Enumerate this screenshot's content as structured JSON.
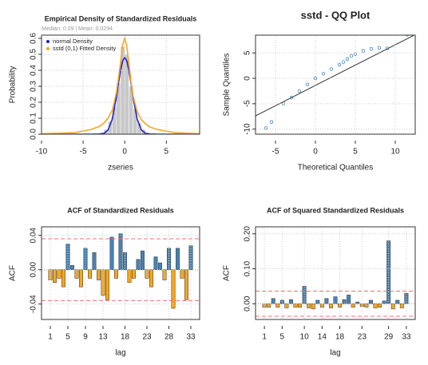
{
  "chart_data": [
    {
      "type": "histogram",
      "title": "Empirical Density of Standardized Residuals",
      "subtitle": "Median: 0.09 | Mean: 0.0294",
      "xlabel": "zseries",
      "ylabel": "Probability",
      "bins": [
        -3,
        -2.5,
        -2,
        -1.5,
        -1,
        -0.5,
        0,
        0.5,
        1,
        1.5,
        2,
        2.5,
        3
      ],
      "counts": [
        0.01,
        0.03,
        0.08,
        0.17,
        0.32,
        0.55,
        0.5,
        0.3,
        0.16,
        0.07,
        0.03,
        0.01
      ],
      "color": "#c8c8c8",
      "series": [
        {
          "name": "normal Density",
          "color": "#2222cc",
          "x": [
            -10,
            -6,
            -4,
            -3,
            -2.5,
            -2,
            -1.5,
            -1,
            -0.75,
            -0.5,
            -0.25,
            0,
            0.25,
            0.5,
            0.75,
            1,
            1.5,
            2,
            2.5,
            3,
            4,
            6,
            9
          ],
          "values": [
            0,
            0,
            0,
            0.001,
            0.005,
            0.026,
            0.094,
            0.232,
            0.319,
            0.4,
            0.459,
            0.48,
            0.459,
            0.4,
            0.319,
            0.232,
            0.094,
            0.026,
            0.005,
            0.001,
            0,
            0,
            0
          ]
        },
        {
          "name": "sstd (0,1) Fitted Density",
          "color": "#f5a623",
          "x": [
            -10,
            -6,
            -4,
            -3,
            -2.5,
            -2,
            -1.5,
            -1,
            -0.75,
            -0.5,
            -0.25,
            0,
            0.25,
            0.5,
            0.75,
            1,
            1.5,
            2,
            2.5,
            3,
            4,
            6,
            9
          ],
          "values": [
            0.002,
            0.01,
            0.03,
            0.05,
            0.07,
            0.1,
            0.15,
            0.26,
            0.35,
            0.45,
            0.56,
            0.6,
            0.55,
            0.44,
            0.33,
            0.24,
            0.14,
            0.09,
            0.065,
            0.045,
            0.028,
            0.01,
            0.003
          ]
        }
      ],
      "xlim": [
        -10,
        9
      ],
      "ylim": [
        0,
        0.62
      ],
      "xticks": [
        -10,
        -5,
        0,
        5
      ],
      "yticks": [
        {
          "value": 0,
          "label": "0.0"
        },
        0.1,
        0.2,
        0.3,
        0.4,
        0.5,
        0.6
      ],
      "grid": true,
      "legend": "top-left"
    },
    {
      "type": "scatter",
      "title": "sstd - QQ Plot",
      "xlabel": "Theoretical Quantiles",
      "ylabel": "Sample Quantiles",
      "x": [
        -6.2,
        -5.5,
        -4,
        -3,
        -2,
        -1,
        0,
        1,
        2,
        3,
        3.5,
        4,
        4.5,
        5,
        6,
        7,
        8,
        9,
        11.5
      ],
      "values": [
        -9.8,
        -8.6,
        -5,
        -3.8,
        -2.5,
        -1.2,
        0,
        0.9,
        1.8,
        2.7,
        3.2,
        3.8,
        4.4,
        4.8,
        5.4,
        5.8,
        6,
        5.9,
        8.6
      ],
      "color": "#4682b4",
      "line": {
        "x": [
          -8,
          13
        ],
        "values": [
          -7.8,
          9
        ]
      },
      "xlim": [
        -7.5,
        12.5
      ],
      "ylim": [
        -11,
        8.5
      ],
      "xticks": [
        -5,
        0,
        5,
        10
      ],
      "yticks": [
        -10,
        -5,
        0,
        5
      ],
      "grid": true
    },
    {
      "type": "acf",
      "title": "ACF of Standardized Residuals",
      "xlabel": "lag",
      "ylabel": "ACF",
      "x": [
        1,
        2,
        3,
        4,
        5,
        6,
        7,
        8,
        9,
        10,
        11,
        12,
        13,
        14,
        15,
        16,
        17,
        18,
        19,
        20,
        21,
        22,
        23,
        24,
        25,
        26,
        27,
        28,
        29,
        30,
        31,
        32,
        33
      ],
      "values": [
        -0.012,
        -0.015,
        -0.01,
        -0.02,
        0.03,
        0.005,
        -0.01,
        -0.02,
        0.025,
        -0.01,
        0.02,
        -0.012,
        -0.03,
        -0.035,
        0.038,
        -0.01,
        0.042,
        0.02,
        -0.015,
        -0.01,
        0.012,
        0.022,
        -0.01,
        -0.02,
        0.015,
        0.008,
        -0.012,
        0.025,
        -0.045,
        0.025,
        -0.01,
        -0.035,
        0.028
      ],
      "colors": {
        "positive": "#4682b4",
        "negative": "#f5a623"
      },
      "conf_limits": [
        -0.036,
        0.036
      ],
      "xlim": [
        -1,
        35
      ],
      "ylim": [
        -0.058,
        0.05
      ],
      "xticks": [
        1,
        5,
        9,
        13,
        18,
        23,
        28,
        33
      ],
      "yticks": [
        -0.04,
        {
          "value": 0,
          "label": "0.00"
        },
        0.04
      ],
      "grid": true
    },
    {
      "type": "acf",
      "title": "ACF of Squared Standardized Residuals",
      "xlabel": "lag",
      "ylabel": "ACF",
      "x": [
        1,
        2,
        3,
        4,
        5,
        6,
        7,
        8,
        9,
        10,
        11,
        12,
        13,
        14,
        15,
        16,
        17,
        18,
        19,
        20,
        21,
        22,
        23,
        24,
        25,
        26,
        27,
        28,
        29,
        30,
        31,
        32,
        33
      ],
      "values": [
        -0.01,
        -0.01,
        0.015,
        -0.01,
        0.01,
        -0.012,
        0.012,
        -0.01,
        -0.01,
        0.05,
        -0.012,
        -0.015,
        0.01,
        -0.01,
        0.015,
        -0.012,
        0.02,
        -0.01,
        0.012,
        0.025,
        -0.01,
        0.005,
        -0.008,
        -0.01,
        0.01,
        -0.012,
        -0.01,
        0.008,
        0.18,
        -0.015,
        0.01,
        -0.012,
        0.03
      ],
      "colors": {
        "positive": "#4682b4",
        "negative": "#f5a623"
      },
      "conf_limits": [
        -0.036,
        0.036
      ],
      "xlim": [
        -1,
        35
      ],
      "ylim": [
        -0.045,
        0.22
      ],
      "xticks": [
        1,
        5,
        10,
        14,
        18,
        23,
        29,
        33
      ],
      "yticks": [
        {
          "value": 0,
          "label": "0.00"
        },
        {
          "value": 0.1,
          "label": "0.10"
        },
        {
          "value": 0.2,
          "label": "0.20"
        }
      ],
      "grid": true
    }
  ]
}
